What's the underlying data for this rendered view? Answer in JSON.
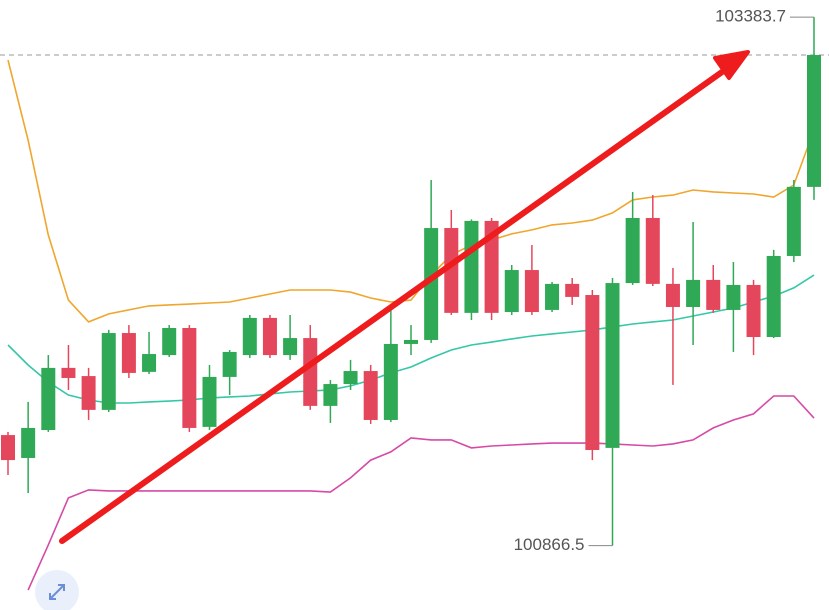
{
  "chart_data": {
    "type": "candlestick",
    "ylim": [
      100560,
      103465
    ],
    "up_color": "#2fa955",
    "down_color": "#e4475b",
    "open": [
      101393,
      101284,
      101417,
      101713,
      101674,
      101513,
      101879,
      101694,
      101774,
      101903,
      101432,
      101670,
      101774,
      101951,
      101774,
      101855,
      101532,
      101636,
      101698,
      101465,
      101827,
      101846,
      102379,
      101975,
      102413,
      101979,
      102179,
      101989,
      102113,
      102060,
      101332,
      102117,
      102427,
      102113,
      102003,
      102132,
      101989,
      102108,
      101860,
      102246,
      102575
    ],
    "high": [
      101408,
      101551,
      101774,
      101822,
      101713,
      101894,
      101917,
      101884,
      101917,
      101917,
      101727,
      101798,
      101965,
      101965,
      101965,
      101917,
      101655,
      101751,
      101727,
      102013,
      101917,
      102608,
      102465,
      102420,
      102427,
      102203,
      102298,
      102122,
      102141,
      102084,
      102141,
      102551,
      102536,
      102189,
      102408,
      102203,
      102217,
      102132,
      102275,
      102608,
      103383.7
    ],
    "low": [
      101203,
      101117,
      101408,
      101608,
      101465,
      101503,
      101665,
      101684,
      101765,
      101408,
      101417,
      101584,
      101760,
      101760,
      101751,
      101513,
      101451,
      101608,
      101446,
      101455,
      101774,
      101832,
      101965,
      101941,
      101941,
      101965,
      101965,
      101979,
      102013,
      101274,
      100866.5,
      102108,
      102103,
      101632,
      101822,
      101975,
      101789,
      101774,
      101855,
      102217,
      102513
    ],
    "close": [
      101274,
      101427,
      101713,
      101665,
      101513,
      101879,
      101689,
      101779,
      101903,
      101427,
      101670,
      101789,
      101951,
      101774,
      101855,
      101532,
      101636,
      101698,
      101465,
      101827,
      101846,
      102379,
      101975,
      102413,
      101975,
      102179,
      101979,
      102113,
      102051,
      101322,
      102117,
      102427,
      102113,
      102003,
      102132,
      101989,
      102108,
      101860,
      102246,
      102575,
      103203
    ],
    "series": [
      {
        "color": "#f0a62c",
        "values": [
          103179,
          102798,
          102346,
          102036,
          101932,
          101970,
          101989,
          102008,
          102013,
          102017,
          102022,
          102027,
          102046,
          102065,
          102084,
          102084,
          102084,
          102074,
          102046,
          102027,
          102036,
          102155,
          102251,
          102298,
          102322,
          102351,
          102370,
          102394,
          102403,
          102417,
          102451,
          102513,
          102527,
          102536,
          102560,
          102551,
          102546,
          102541,
          102527,
          102584,
          102846
        ]
      },
      {
        "color": "#35c7a6",
        "values": [
          101822,
          101727,
          101646,
          101584,
          101560,
          101546,
          101546,
          101551,
          101555,
          101560,
          101570,
          101575,
          101579,
          101589,
          101598,
          101603,
          101608,
          101627,
          101655,
          101689,
          101717,
          101760,
          101798,
          101822,
          101836,
          101851,
          101865,
          101875,
          101884,
          101894,
          101908,
          101922,
          101932,
          101941,
          101960,
          101979,
          101998,
          102027,
          102055,
          102094,
          102155
        ]
      },
      {
        "color": "#d64aa6",
        "values": [
          null,
          100655,
          100870,
          101094,
          101132,
          101127,
          101127,
          101127,
          101127,
          101127,
          101127,
          101127,
          101127,
          101127,
          101127,
          101127,
          101122,
          101189,
          101274,
          101313,
          101379,
          101370,
          101370,
          101332,
          101341,
          101346,
          101351,
          101355,
          101355,
          101355,
          101351,
          101346,
          101341,
          101351,
          101370,
          101427,
          101465,
          101494,
          101579,
          101579,
          101474
        ]
      }
    ],
    "annotations": [
      {
        "label": "103383.7",
        "value": 103383.7
      },
      {
        "label": "100866.5",
        "value": 100866.5
      }
    ]
  }
}
